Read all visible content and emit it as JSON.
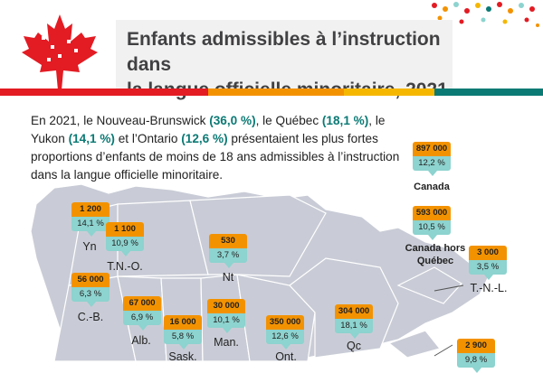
{
  "title_line1": "Enfants admissibles à l’instruction dans",
  "title_line2": "la langue officielle minoritaire, 2021",
  "intro": {
    "p1": "En 2021, le Nouveau-Brunswick ",
    "nb": "(36,0 %)",
    "p2": ", le Québec ",
    "qc": "(18,1 %)",
    "p3": ", le Yukon ",
    "yk": "(14,1 %)",
    "p4": " et l’Ontario ",
    "on": "(12,6 %)",
    "p5": " présentaient les plus fortes proportions d’enfants de moins de 18 ans admissibles à l’instruction dans la langue officielle minoritaire."
  },
  "colors": {
    "orange": "#f39200",
    "teal": "#8dd3cf",
    "highlight": "#0b7a75",
    "map": "#c9ccd6",
    "maple": "#e31b23"
  },
  "regions": [
    {
      "id": "yn",
      "label": "Yn",
      "count": "1 200",
      "pct": "14,1 %"
    },
    {
      "id": "tno",
      "label": "T.N.-O.",
      "count": "1 100",
      "pct": "10,9 %"
    },
    {
      "id": "nt",
      "label": "Nt",
      "count": "530",
      "pct": "3,7 %"
    },
    {
      "id": "cb",
      "label": "C.-B.",
      "count": "56 000",
      "pct": "6,3 %"
    },
    {
      "id": "alb",
      "label": "Alb.",
      "count": "67 000",
      "pct": "6,9 %"
    },
    {
      "id": "sask",
      "label": "Sask.",
      "count": "16 000",
      "pct": "5,8 %"
    },
    {
      "id": "man",
      "label": "Man.",
      "count": "30 000",
      "pct": "10,1 %"
    },
    {
      "id": "ont",
      "label": "Ont.",
      "count": "350 000",
      "pct": "12,6 %"
    },
    {
      "id": "qc",
      "label": "Qc",
      "count": "304 000",
      "pct": "18,1 %"
    },
    {
      "id": "tnl",
      "label": "T.-N.-L.",
      "count": "3 000",
      "pct": "3,5 %"
    },
    {
      "id": "atl",
      "label": "",
      "count": "2 900",
      "pct": "9,8 %"
    }
  ],
  "canada": {
    "label": "Canada",
    "count": "897 000",
    "pct": "12,2 %"
  },
  "canada_hors_qc": {
    "label_line1": "Canada hors",
    "label_line2": "Québec",
    "count": "593 000",
    "pct": "10,5 %"
  }
}
